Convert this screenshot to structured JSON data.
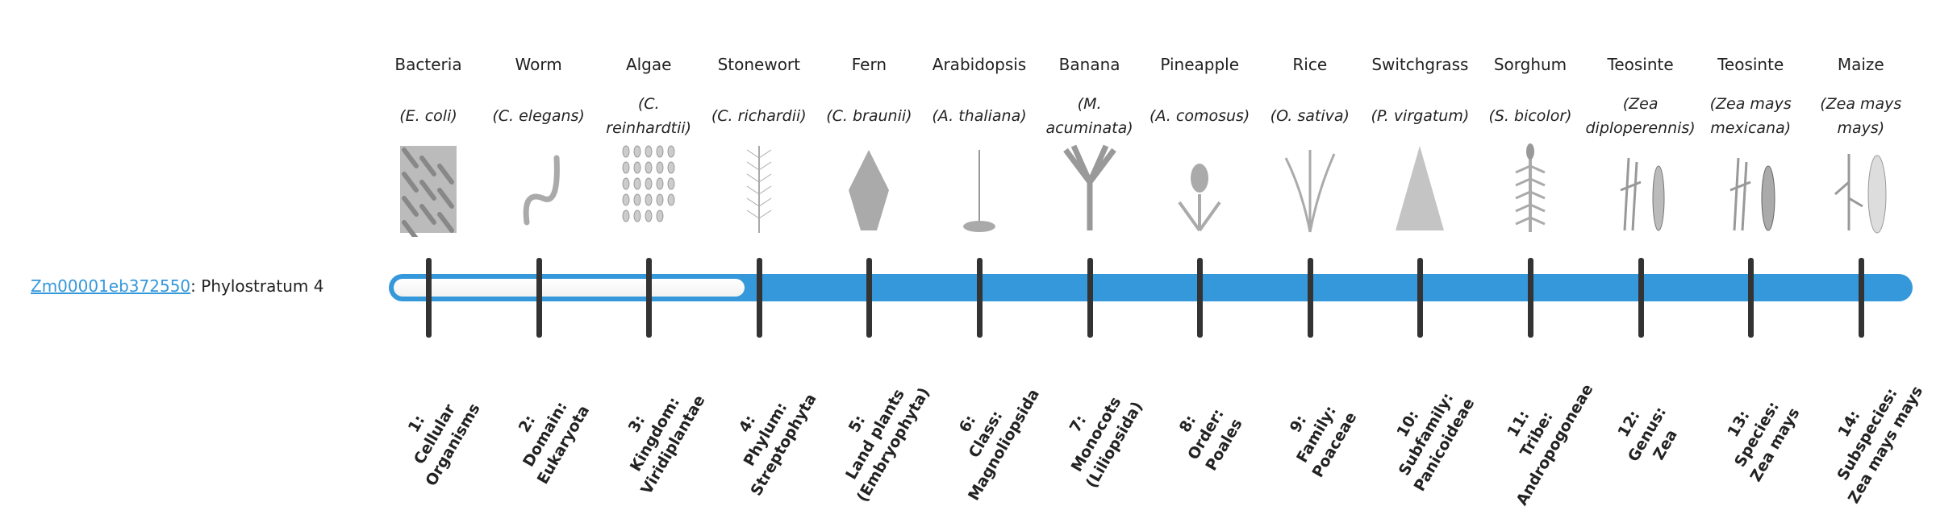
{
  "gene": {
    "id": "Zm00001eb372550",
    "suffix": ": Phylostratum 4"
  },
  "phylostratum": 4,
  "colors": {
    "bar": "#3598db",
    "tick": "#333333",
    "link": "#3598db"
  },
  "organisms": [
    {
      "common": "Bacteria",
      "species": "(E. coli)",
      "icon": "bacteria-image"
    },
    {
      "common": "Worm",
      "species": "(C. elegans)",
      "icon": "worm-image"
    },
    {
      "common": "Algae",
      "species": "(C. reinhardtii)",
      "icon": "algae-image"
    },
    {
      "common": "Stonewort",
      "species": "(C. richardii)",
      "icon": "stonewort-image"
    },
    {
      "common": "Fern",
      "species": "(C. braunii)",
      "icon": "fern-image"
    },
    {
      "common": "Arabidopsis",
      "species": "(A. thaliana)",
      "icon": "arabidopsis-image"
    },
    {
      "common": "Banana",
      "species": "(M. acuminata)",
      "icon": "banana-image"
    },
    {
      "common": "Pineapple",
      "species": "(A. comosus)",
      "icon": "pineapple-image"
    },
    {
      "common": "Rice",
      "species": "(O. sativa)",
      "icon": "rice-image"
    },
    {
      "common": "Switchgrass",
      "species": "(P. virgatum)",
      "icon": "switchgrass-image"
    },
    {
      "common": "Sorghum",
      "species": "(S. bicolor)",
      "icon": "sorghum-image"
    },
    {
      "common": "Teosinte",
      "species": "(Zea diploperennis)",
      "icon": "teosinte-image"
    },
    {
      "common": "Teosinte",
      "species": "(Zea mays mexicana)",
      "icon": "teosinte-image"
    },
    {
      "common": "Maize",
      "species": "(Zea mays mays)",
      "icon": "maize-image"
    }
  ],
  "strata": [
    [
      "1:",
      "Cellular",
      "Organisms"
    ],
    [
      "2:",
      "Domain:",
      "Eukaryota"
    ],
    [
      "3:",
      "Kingdom:",
      "Viridiplantae"
    ],
    [
      "4:",
      "Phylum:",
      "Streptophyta"
    ],
    [
      "5:",
      "Land plants",
      "(Embryophyta)"
    ],
    [
      "6:",
      "Class:",
      "Magnoliopsida"
    ],
    [
      "7:",
      "Monocots",
      "(Liliopsida)"
    ],
    [
      "8:",
      "Order:",
      "Poales"
    ],
    [
      "9:",
      "Family:",
      "Poaceae"
    ],
    [
      "10:",
      "Subfamily:",
      "Panicoideae"
    ],
    [
      "11:",
      "Tribe:",
      "Andropogoneae"
    ],
    [
      "12:",
      "Genus:",
      "Zea"
    ],
    [
      "13:",
      "Species:",
      "Zea mays"
    ],
    [
      "14:",
      "Subspecies:",
      "Zea mays mays"
    ]
  ]
}
